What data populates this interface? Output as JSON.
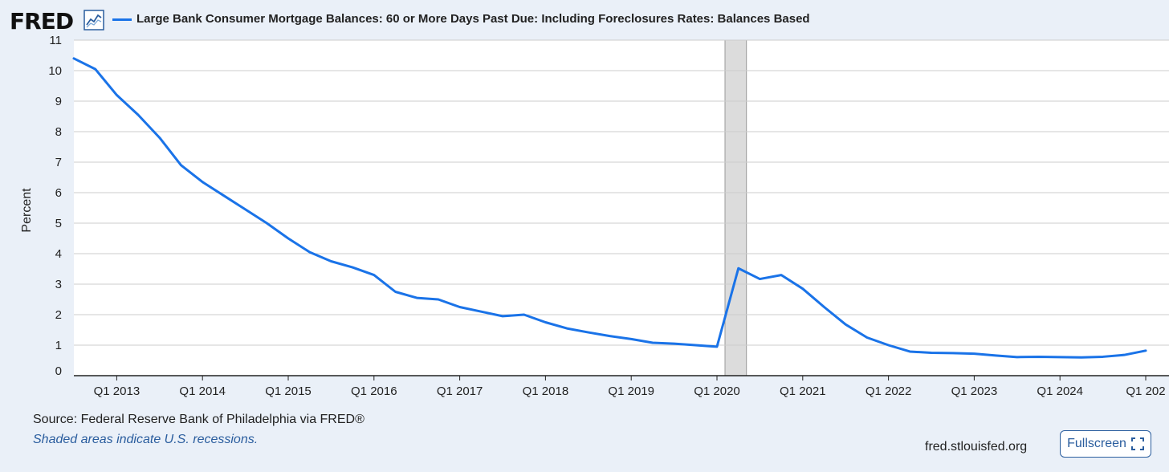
{
  "header": {
    "logo_text": "FRED",
    "logo_icon": "line-chart-icon",
    "title": "Large Bank Consumer Mortgage Balances: 60 or More Days Past Due: Including Foreclosures Rates: Balances Based"
  },
  "footer": {
    "source": "Source: Federal Reserve Bank of Philadelphia via FRED®",
    "recession_note": "Shaded areas indicate U.S. recessions.",
    "site": "fred.stlouisfed.org",
    "fullscreen_label": "Fullscreen",
    "fullscreen_icon": "expand-icon"
  },
  "colors": {
    "line": "#1a73e8",
    "recession": "#dcdcdc",
    "grid": "#cccccc"
  },
  "chart_data": {
    "type": "line",
    "title": "Large Bank Consumer Mortgage Balances: 60 or More Days Past Due: Including Foreclosures Rates: Balances Based",
    "ylabel": "Percent",
    "xlabel": "",
    "ylim": [
      0,
      11
    ],
    "yticks": [
      0,
      1,
      2,
      3,
      4,
      5,
      6,
      7,
      8,
      9,
      10,
      11
    ],
    "xlim": [
      "2012-Q3",
      "2025-Q1"
    ],
    "xticks": [
      "Q1 2013",
      "Q1 2014",
      "Q1 2015",
      "Q1 2016",
      "Q1 2017",
      "Q1 2018",
      "Q1 2019",
      "Q1 2020",
      "Q1 2021",
      "Q1 2022",
      "Q1 2023",
      "Q1 2024",
      "Q1 202"
    ],
    "grid": true,
    "recessions": [
      {
        "start": "2020-Q1",
        "end": "2020-Q2"
      }
    ],
    "series": [
      {
        "x": [
          "2012-Q3",
          "2012-Q4",
          "2013-Q1",
          "2013-Q2",
          "2013-Q3",
          "2013-Q4",
          "2014-Q1",
          "2014-Q2",
          "2014-Q3",
          "2014-Q4",
          "2015-Q1",
          "2015-Q2",
          "2015-Q3",
          "2015-Q4",
          "2016-Q1",
          "2016-Q2",
          "2016-Q3",
          "2016-Q4",
          "2017-Q1",
          "2017-Q2",
          "2017-Q3",
          "2017-Q4",
          "2018-Q1",
          "2018-Q2",
          "2018-Q3",
          "2018-Q4",
          "2019-Q1",
          "2019-Q2",
          "2019-Q3",
          "2019-Q4",
          "2020-Q1",
          "2020-Q2",
          "2020-Q3",
          "2020-Q4",
          "2021-Q1",
          "2021-Q2",
          "2021-Q3",
          "2021-Q4",
          "2022-Q1",
          "2022-Q2",
          "2022-Q3",
          "2022-Q4",
          "2023-Q1",
          "2023-Q2",
          "2023-Q3",
          "2023-Q4",
          "2024-Q1",
          "2024-Q2",
          "2024-Q3",
          "2024-Q4",
          "2025-Q1"
        ],
        "values": [
          10.4,
          10.05,
          9.2,
          8.55,
          7.8,
          6.9,
          6.35,
          5.9,
          5.45,
          5.0,
          4.5,
          4.05,
          3.75,
          3.55,
          3.3,
          2.75,
          2.55,
          2.5,
          2.25,
          2.1,
          1.95,
          2.0,
          1.75,
          1.55,
          1.42,
          1.3,
          1.2,
          1.08,
          1.05,
          1.0,
          0.95,
          3.52,
          3.17,
          3.3,
          2.85,
          2.25,
          1.68,
          1.25,
          1.0,
          0.79,
          0.75,
          0.74,
          0.72,
          0.66,
          0.61,
          0.62,
          0.61,
          0.6,
          0.62,
          0.68,
          0.82
        ]
      }
    ]
  }
}
